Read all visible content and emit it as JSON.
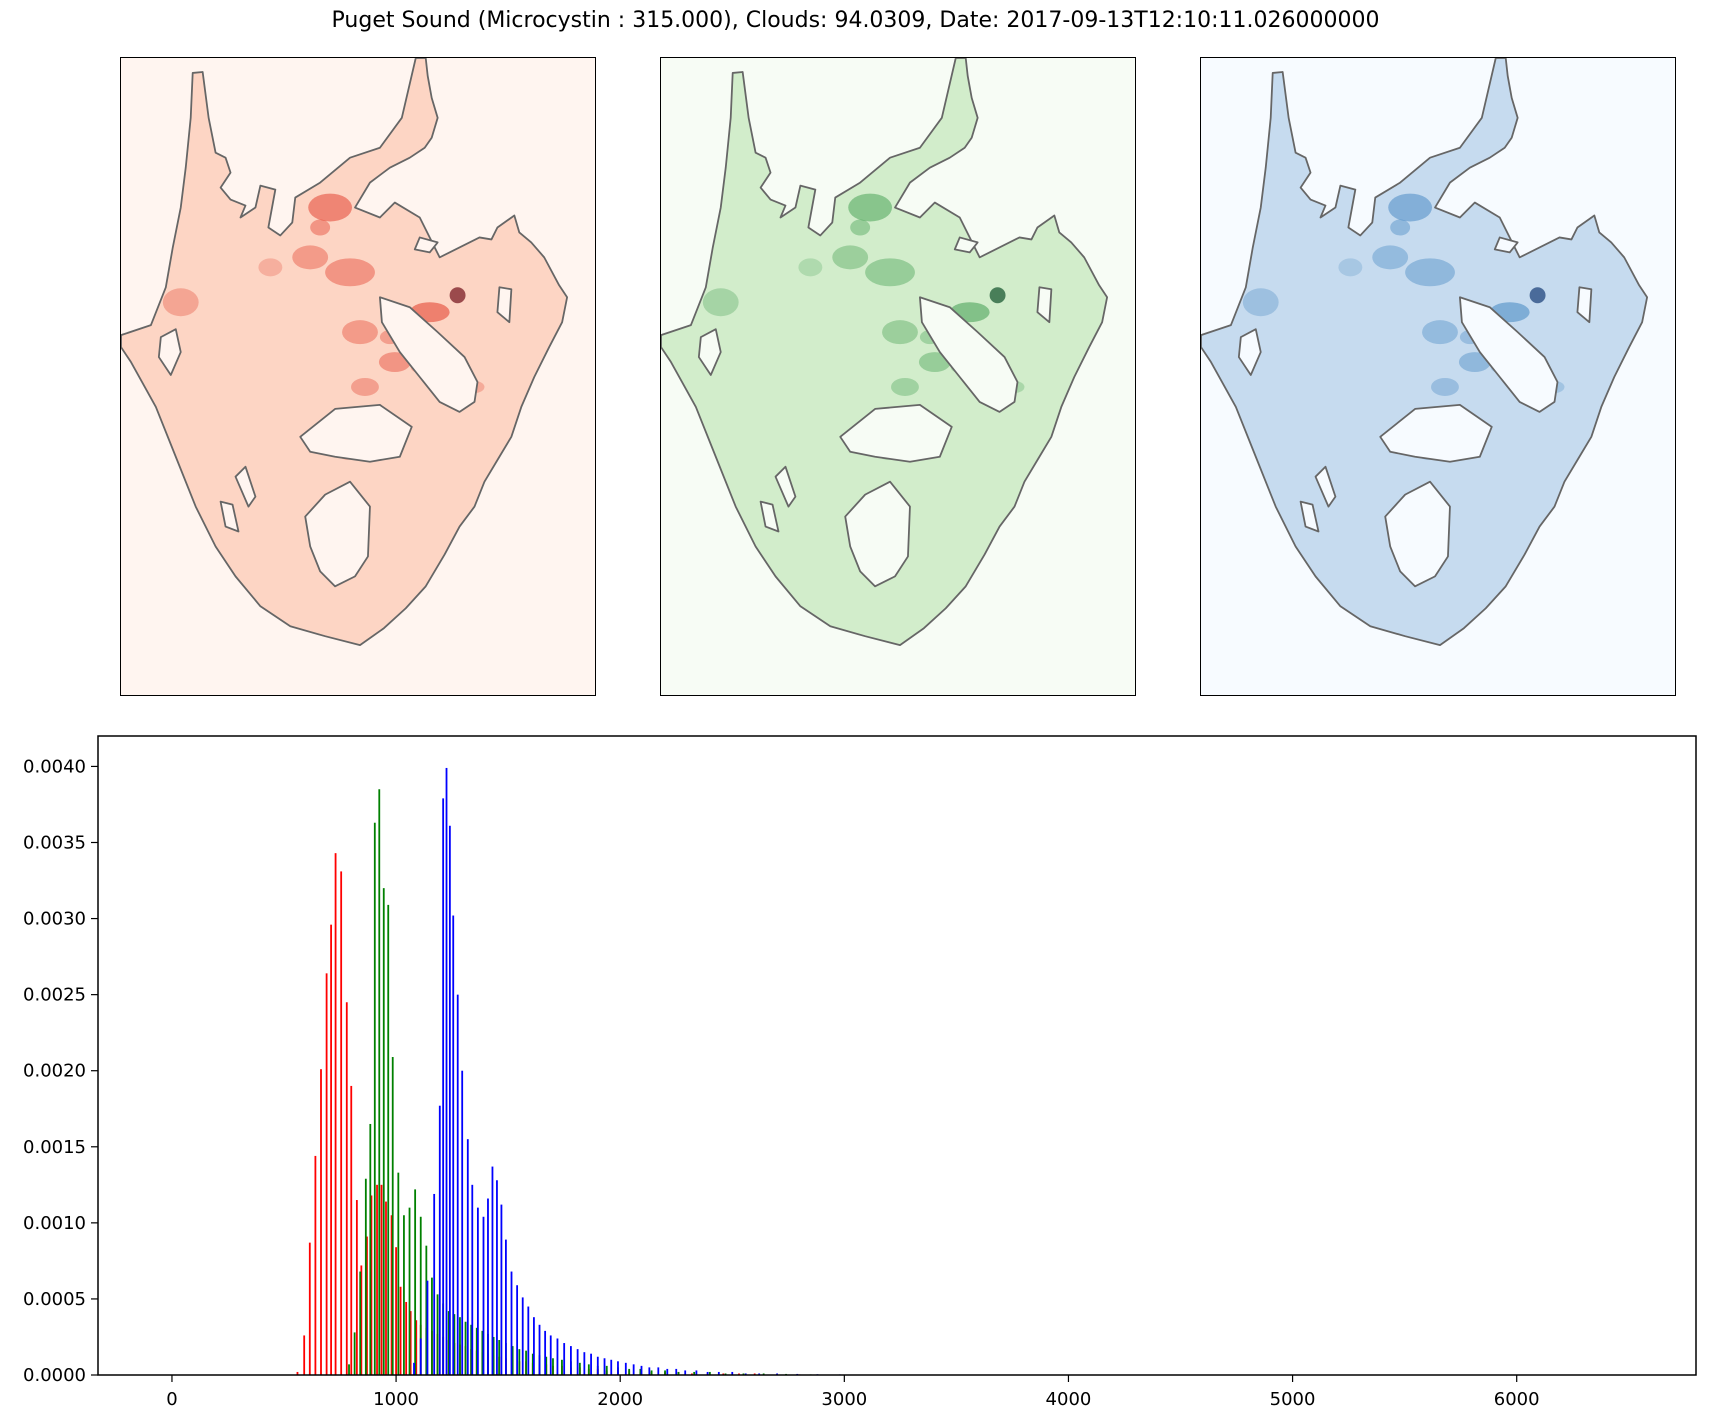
{
  "figure": {
    "title": "Puget Sound (Microcystin : 315.000), Clouds: 94.0309, Date: 2017-09-13T12:10:11.026000000"
  },
  "maps": [
    {
      "name": "red-band-map",
      "cmap": "Reds",
      "background": "#fff5f0",
      "water": "#fdd5c4",
      "hotspot": "#e0321f",
      "peak": "#67000d"
    },
    {
      "name": "green-band-map",
      "cmap": "Greens",
      "background": "#f7fcf5",
      "water": "#d2edcb",
      "hotspot": "#3a9a4a",
      "peak": "#00441b"
    },
    {
      "name": "blue-band-map",
      "cmap": "Blues",
      "background": "#f7fbff",
      "water": "#c6dbef",
      "hotspot": "#3c82bf",
      "peak": "#08306b"
    }
  ],
  "chart_data": {
    "type": "bar",
    "title": "",
    "xlabel": "",
    "ylabel": "",
    "xlim": [
      -330,
      6800
    ],
    "ylim": [
      0,
      0.0042
    ],
    "xticks": [
      0,
      1000,
      2000,
      3000,
      4000,
      5000,
      6000
    ],
    "yticks": [
      0.0,
      0.0005,
      0.001,
      0.0015,
      0.002,
      0.0025,
      0.003,
      0.0035,
      0.004
    ],
    "ytick_labels": [
      "0.0000",
      "0.0005",
      "0.0010",
      "0.0015",
      "0.0020",
      "0.0025",
      "0.0030",
      "0.0035",
      "0.0040"
    ],
    "grid": false,
    "series": [
      {
        "color": "#ff0000",
        "points": [
          [
            560,
            2e-05
          ],
          [
            590,
            0.00026
          ],
          [
            615,
            0.00087
          ],
          [
            640,
            0.00144
          ],
          [
            665,
            0.00201
          ],
          [
            690,
            0.00264
          ],
          [
            710,
            0.00296
          ],
          [
            730,
            0.00343
          ],
          [
            755,
            0.00331
          ],
          [
            780,
            0.00245
          ],
          [
            800,
            0.0019
          ],
          [
            825,
            0.00115
          ],
          [
            845,
            0.00072
          ],
          [
            870,
            0.00091
          ],
          [
            890,
            0.00118
          ],
          [
            915,
            0.00125
          ],
          [
            935,
            0.00125
          ],
          [
            955,
            0.00114
          ],
          [
            980,
            0.00105
          ],
          [
            1000,
            0.00084
          ],
          [
            1020,
            0.00058
          ],
          [
            1045,
            0.00048
          ],
          [
            1065,
            0.00042
          ],
          [
            1090,
            0.00036
          ],
          [
            1110,
            0.00033
          ],
          [
            1135,
            0.00031
          ],
          [
            1160,
            0.00029
          ],
          [
            1185,
            0.00027
          ],
          [
            1210,
            0.00025
          ],
          [
            1235,
            0.00023
          ],
          [
            1260,
            0.00021
          ],
          [
            1285,
            0.0002
          ],
          [
            1310,
            0.00019
          ],
          [
            1335,
            0.00017
          ],
          [
            1360,
            0.00016
          ],
          [
            1385,
            0.00015
          ],
          [
            1410,
            0.00014
          ],
          [
            1435,
            0.00013
          ],
          [
            1460,
            0.00012
          ],
          [
            1490,
            0.00011
          ],
          [
            1520,
            0.0001
          ],
          [
            1550,
            9e-05
          ],
          [
            1580,
            9e-05
          ],
          [
            1610,
            8e-05
          ],
          [
            1640,
            7e-05
          ],
          [
            1670,
            7e-05
          ],
          [
            1700,
            6e-05
          ],
          [
            1740,
            6e-05
          ],
          [
            1780,
            5e-05
          ],
          [
            1820,
            5e-05
          ],
          [
            1860,
            4e-05
          ],
          [
            1900,
            4e-05
          ],
          [
            1940,
            3e-05
          ],
          [
            1990,
            3e-05
          ],
          [
            2040,
            3e-05
          ],
          [
            2090,
            2e-05
          ],
          [
            2140,
            2e-05
          ],
          [
            2200,
            2e-05
          ],
          [
            2260,
            2e-05
          ],
          [
            2320,
            1e-05
          ],
          [
            2390,
            1e-05
          ],
          [
            2460,
            1e-05
          ],
          [
            2530,
            1e-05
          ],
          [
            2600,
            1e-05
          ],
          [
            2700,
            6e-06
          ],
          [
            2800,
            4e-06
          ],
          [
            2900,
            3e-06
          ],
          [
            3000,
            2e-06
          ]
        ]
      },
      {
        "color": "#008000",
        "points": [
          [
            790,
            7e-05
          ],
          [
            815,
            0.00028
          ],
          [
            840,
            0.00068
          ],
          [
            865,
            0.00129
          ],
          [
            885,
            0.00165
          ],
          [
            905,
            0.00363
          ],
          [
            925,
            0.00385
          ],
          [
            945,
            0.0032
          ],
          [
            965,
            0.00309
          ],
          [
            985,
            0.00209
          ],
          [
            1010,
            0.00133
          ],
          [
            1035,
            0.00105
          ],
          [
            1060,
            0.0011
          ],
          [
            1085,
            0.00122
          ],
          [
            1110,
            0.00104
          ],
          [
            1135,
            0.00085
          ],
          [
            1160,
            0.00064
          ],
          [
            1185,
            0.00053
          ],
          [
            1210,
            0.00047
          ],
          [
            1235,
            0.00042
          ],
          [
            1260,
            0.0004
          ],
          [
            1285,
            0.00038
          ],
          [
            1310,
            0.00035
          ],
          [
            1335,
            0.00033
          ],
          [
            1360,
            0.00031
          ],
          [
            1385,
            0.00029
          ],
          [
            1410,
            0.00027
          ],
          [
            1435,
            0.00025
          ],
          [
            1460,
            0.00023
          ],
          [
            1490,
            0.00021
          ],
          [
            1520,
            0.00019
          ],
          [
            1550,
            0.00017
          ],
          [
            1580,
            0.00016
          ],
          [
            1610,
            0.00014
          ],
          [
            1640,
            0.00013
          ],
          [
            1670,
            0.00012
          ],
          [
            1700,
            0.00011
          ],
          [
            1740,
            0.0001
          ],
          [
            1780,
            9e-05
          ],
          [
            1820,
            8e-05
          ],
          [
            1860,
            7e-05
          ],
          [
            1900,
            6e-05
          ],
          [
            1940,
            6e-05
          ],
          [
            1990,
            5e-05
          ],
          [
            2040,
            4e-05
          ],
          [
            2090,
            4e-05
          ],
          [
            2140,
            3e-05
          ],
          [
            2200,
            3e-05
          ],
          [
            2260,
            2e-05
          ],
          [
            2330,
            2e-05
          ],
          [
            2400,
            2e-05
          ],
          [
            2470,
            1e-05
          ],
          [
            2550,
            1e-05
          ],
          [
            2640,
            1e-05
          ],
          [
            2740,
            7e-06
          ],
          [
            2850,
            4e-06
          ],
          [
            2960,
            3e-06
          ],
          [
            3080,
            2e-06
          ],
          [
            3200,
            1e-06
          ]
        ]
      },
      {
        "color": "#0000ff",
        "points": [
          [
            1080,
            8e-05
          ],
          [
            1110,
            0.00024
          ],
          [
            1140,
            0.00062
          ],
          [
            1170,
            0.00119
          ],
          [
            1195,
            0.00177
          ],
          [
            1210,
            0.00379
          ],
          [
            1225,
            0.00399
          ],
          [
            1240,
            0.00361
          ],
          [
            1255,
            0.00302
          ],
          [
            1275,
            0.0025
          ],
          [
            1295,
            0.002
          ],
          [
            1320,
            0.00155
          ],
          [
            1340,
            0.00125
          ],
          [
            1365,
            0.0011
          ],
          [
            1390,
            0.00104
          ],
          [
            1410,
            0.00116
          ],
          [
            1430,
            0.00137
          ],
          [
            1450,
            0.00128
          ],
          [
            1470,
            0.00112
          ],
          [
            1490,
            0.00089
          ],
          [
            1515,
            0.00068
          ],
          [
            1540,
            0.00059
          ],
          [
            1565,
            0.00051
          ],
          [
            1590,
            0.00045
          ],
          [
            1615,
            0.00038
          ],
          [
            1640,
            0.00033
          ],
          [
            1665,
            0.00029
          ],
          [
            1690,
            0.00026
          ],
          [
            1720,
            0.00024
          ],
          [
            1750,
            0.00021
          ],
          [
            1780,
            0.00019
          ],
          [
            1810,
            0.00017
          ],
          [
            1840,
            0.00015
          ],
          [
            1870,
            0.00014
          ],
          [
            1900,
            0.00012
          ],
          [
            1930,
            0.00011
          ],
          [
            1960,
            0.0001
          ],
          [
            1990,
            9e-05
          ],
          [
            2025,
            8e-05
          ],
          [
            2060,
            7e-05
          ],
          [
            2095,
            6e-05
          ],
          [
            2130,
            5e-05
          ],
          [
            2170,
            5e-05
          ],
          [
            2210,
            4e-05
          ],
          [
            2250,
            4e-05
          ],
          [
            2290,
            3e-05
          ],
          [
            2340,
            3e-05
          ],
          [
            2390,
            2e-05
          ],
          [
            2440,
            2e-05
          ],
          [
            2500,
            2e-05
          ],
          [
            2560,
            1e-05
          ],
          [
            2620,
            1e-05
          ],
          [
            2700,
            1e-05
          ],
          [
            2790,
            7e-06
          ],
          [
            2880,
            5e-06
          ],
          [
            2980,
            4e-06
          ],
          [
            3080,
            3e-06
          ],
          [
            3180,
            2e-06
          ],
          [
            3260,
            1e-06
          ]
        ]
      }
    ]
  }
}
